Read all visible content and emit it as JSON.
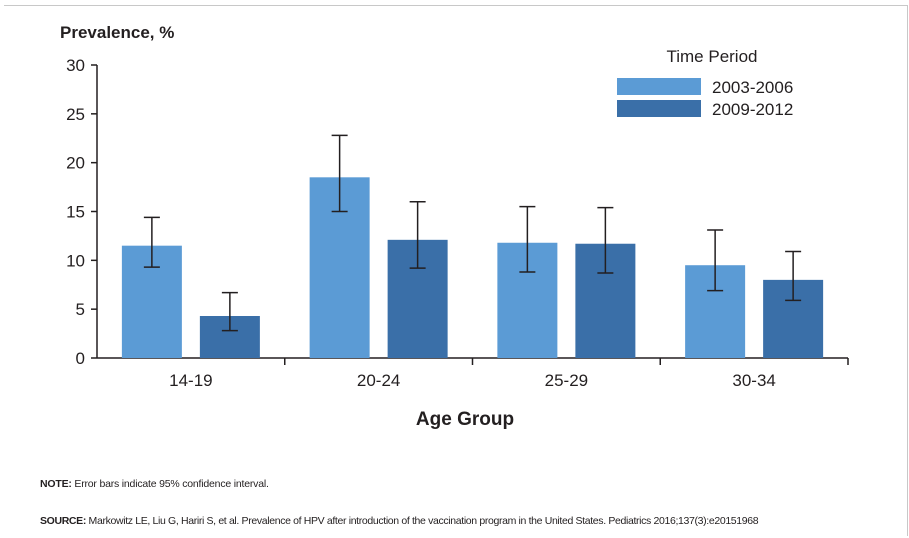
{
  "chart_data": {
    "type": "bar",
    "ylabel": "Prevalence, %",
    "xlabel": "Age Group",
    "categories": [
      "14-19",
      "20-24",
      "25-29",
      "30-34"
    ],
    "ylim": [
      0,
      30
    ],
    "yticks": [
      "0",
      "5",
      "10",
      "15",
      "20",
      "25",
      "30"
    ],
    "legend_title": "Time Period",
    "legend_position": "top-right",
    "grid": false,
    "error_bars": true,
    "series": [
      {
        "name": "2003-2006",
        "color": "#5b9bd5",
        "values": [
          11.5,
          18.5,
          11.8,
          9.5
        ],
        "ci_low": [
          9.3,
          15.0,
          8.8,
          6.9
        ],
        "ci_high": [
          14.4,
          22.8,
          15.5,
          13.1
        ]
      },
      {
        "name": "2009-2012",
        "color": "#3a6fa8",
        "values": [
          4.3,
          12.1,
          11.7,
          8.0
        ],
        "ci_low": [
          2.8,
          9.2,
          8.7,
          5.9
        ],
        "ci_high": [
          6.7,
          16.0,
          15.4,
          10.9
        ]
      }
    ]
  },
  "footnotes": {
    "note_label": "NOTE:",
    "note_text": " Error bars indicate 95% confidence interval.",
    "source_label": "SOURCE:",
    "source_text": " Markowitz LE, Liu G, Hariri S, et al. Prevalence of HPV after introduction of the vaccination program in the United States. Pediatrics 2016;137(3):e20151968"
  }
}
